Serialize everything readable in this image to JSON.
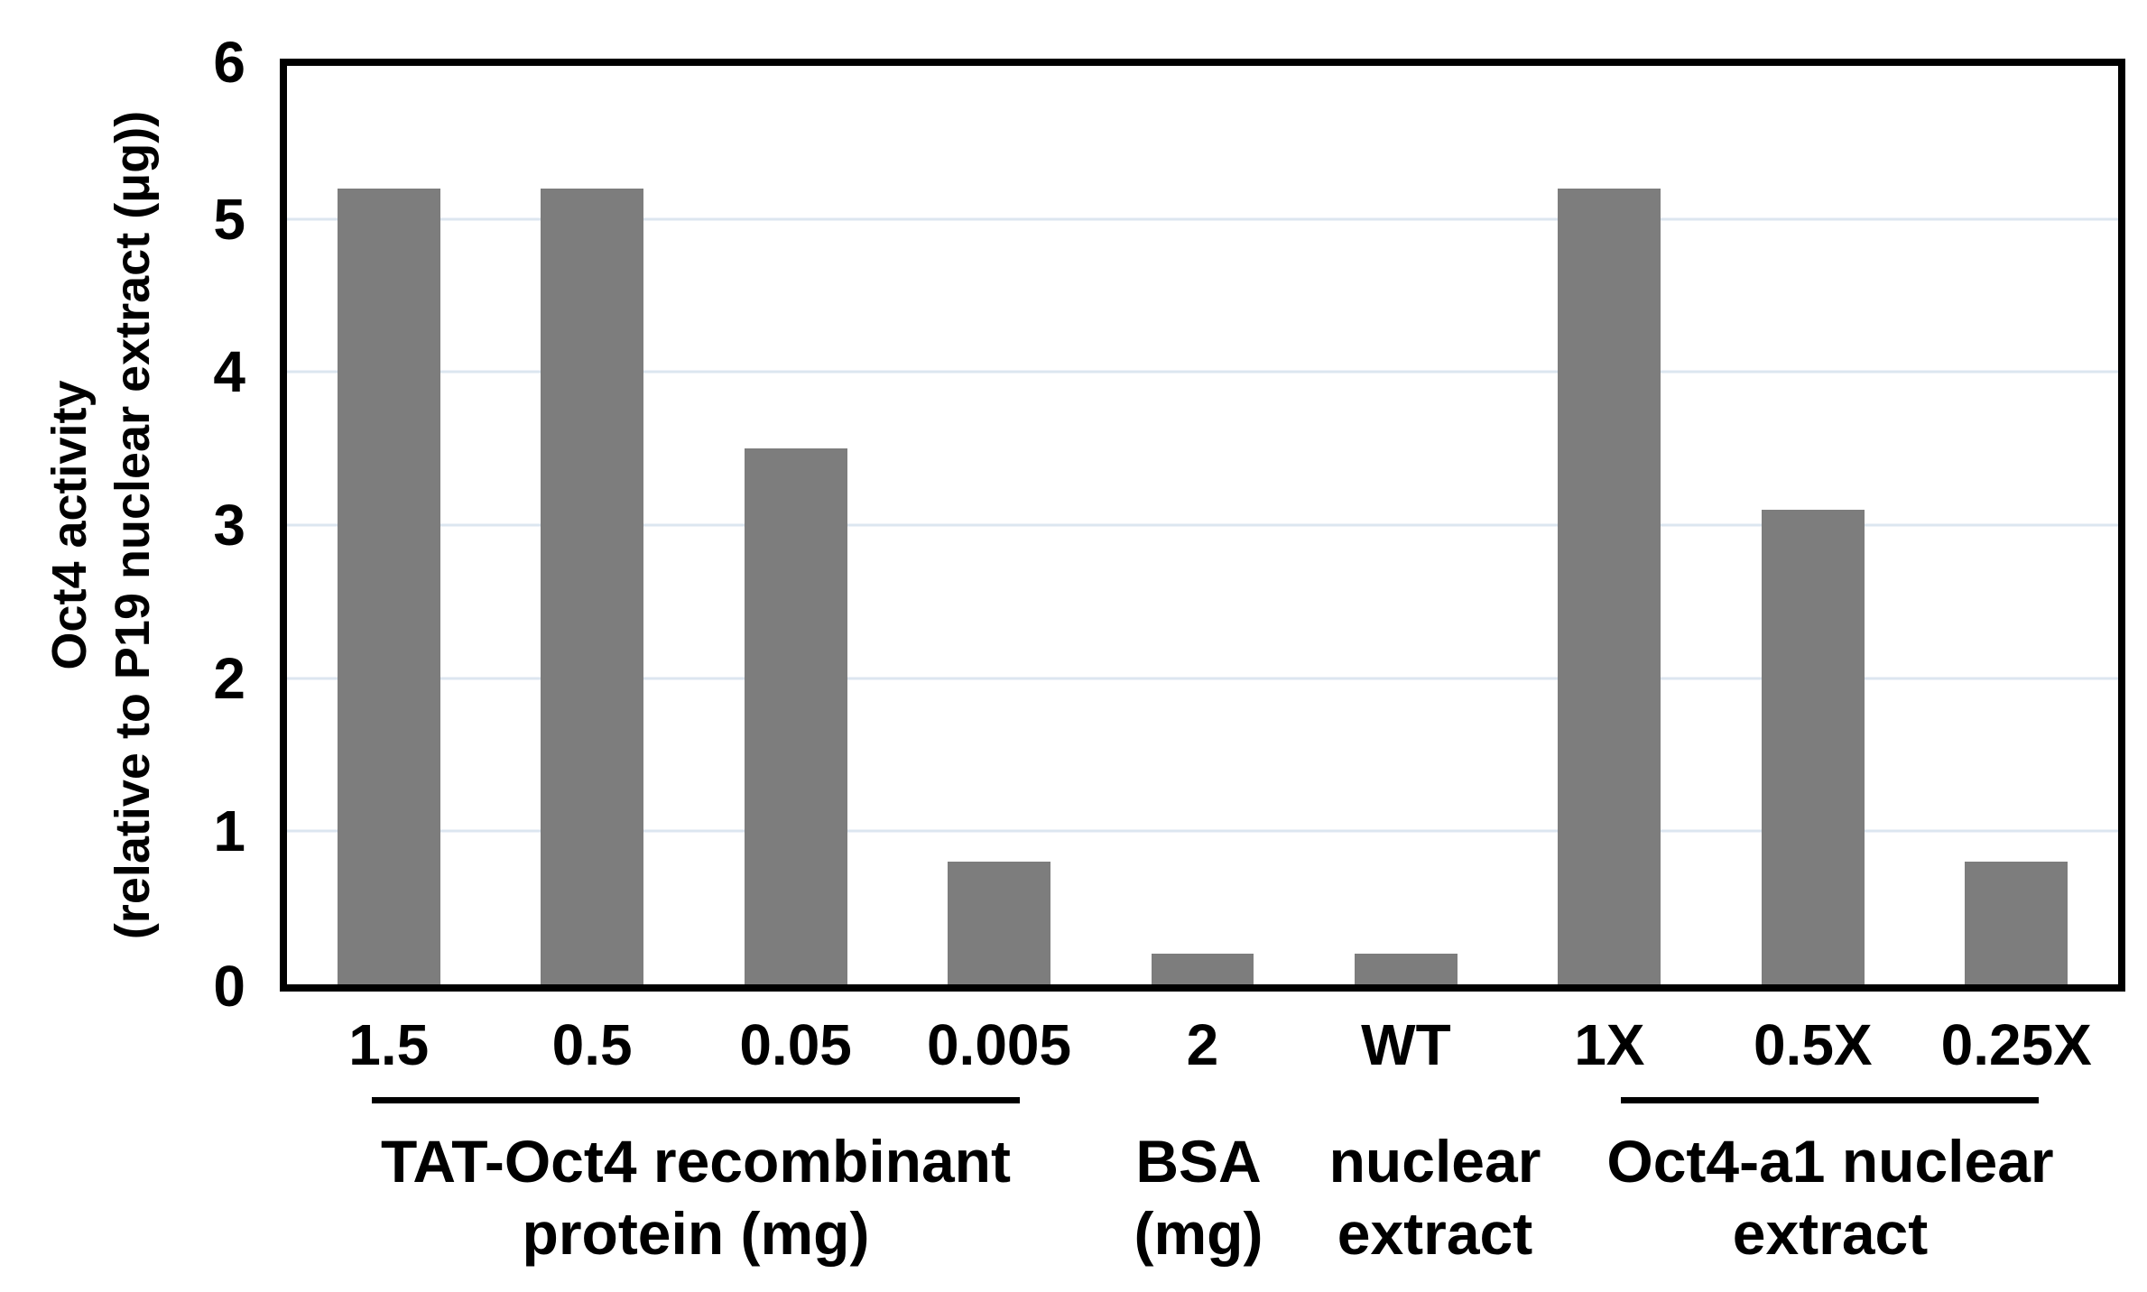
{
  "chart_data": {
    "type": "bar",
    "title": "",
    "ylabel_line1": "Oct4 activity",
    "ylabel_line2": "(relative to P19 nuclear extract (μg))",
    "xlabel": "",
    "ylim": [
      0,
      6
    ],
    "y_ticks": [
      "6",
      "5",
      "4",
      "3",
      "2",
      "1",
      "0"
    ],
    "grid": "horizontal-light-blue",
    "legend_position": "none",
    "categories": [
      "1.5",
      "0.5",
      "0.05",
      "0.005",
      "2",
      "WT",
      "1X",
      "0.5X",
      "0.25X"
    ],
    "values": [
      5.2,
      5.2,
      3.5,
      0.8,
      0.2,
      0.2,
      5.2,
      3.1,
      0.8
    ],
    "groups": [
      {
        "line1": "TAT-Oct4 recombinant",
        "line2": "protein (mg)",
        "underlined": true,
        "category_span": [
          0,
          3
        ]
      },
      {
        "line1": "BSA",
        "line2": "(mg)",
        "underlined": false,
        "category_span": [
          4,
          4
        ]
      },
      {
        "line1": "nuclear",
        "line2": "extract",
        "underlined": false,
        "category_span": [
          5,
          5
        ]
      },
      {
        "line1": "Oct4-a1 nuclear",
        "line2": "extract",
        "underlined": true,
        "category_span": [
          6,
          8
        ]
      }
    ],
    "colors": {
      "bar": "#7d7d7d",
      "gridline": "#dce6f0",
      "axis": "#000000",
      "background": "#ffffff"
    }
  }
}
